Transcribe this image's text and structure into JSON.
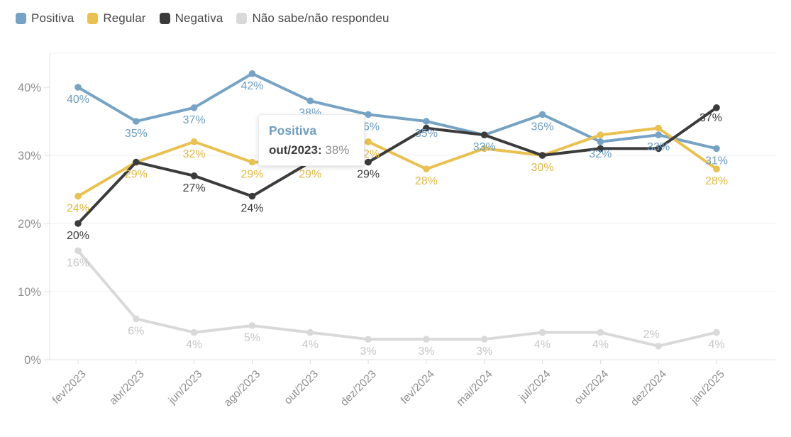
{
  "chart_data": {
    "type": "line",
    "categories": [
      "fev/2023",
      "abr/2023",
      "jun/2023",
      "ago/2023",
      "out/2023",
      "dez/2023",
      "fev/2024",
      "mai/2024",
      "jul/2024",
      "out/2024",
      "dez/2024",
      "jan/2025"
    ],
    "series": [
      {
        "name": "Positiva",
        "color": "#76a3c4",
        "label_color": "#6d9dc2",
        "values": [
          40,
          35,
          37,
          42,
          38,
          36,
          35,
          33,
          36,
          32,
          33,
          31
        ],
        "hidden_labels": [],
        "label_offsets": {}
      },
      {
        "name": "Regular",
        "color": "#e9c152",
        "label_color": "#e3b844",
        "values": [
          24,
          29,
          32,
          29,
          29,
          32,
          28,
          31,
          30,
          33,
          34,
          28
        ],
        "hidden_labels": [
          7,
          9,
          10
        ],
        "label_offsets": {}
      },
      {
        "name": "Negativa",
        "color": "#3b3b3b",
        "label_color": "#3d3d3d",
        "values": [
          20,
          29,
          27,
          24,
          29,
          29,
          34,
          33,
          30,
          31,
          31,
          37
        ],
        "hidden_labels": [
          1,
          4,
          6,
          7,
          8,
          9,
          10
        ],
        "label_offsets": {
          "11": [
            -8,
            -3
          ]
        }
      },
      {
        "name": "Não sabe/não respondeu",
        "color": "#d9d9d9",
        "label_color": "#c6c6c6",
        "values": [
          16,
          6,
          4,
          5,
          4,
          3,
          3,
          3,
          4,
          4,
          2,
          4
        ],
        "hidden_labels": [],
        "label_offsets": {
          "10": [
            -10,
            -34
          ]
        }
      }
    ],
    "title": "",
    "xlabel": "",
    "ylabel": "",
    "ylim": [
      0,
      45
    ],
    "ytick_step": 10,
    "tick_suffix": "%",
    "grid": true,
    "legend_position": "top-left"
  },
  "tooltip": {
    "series_label": "Positiva",
    "point_label": "out/2023:",
    "value": "38%"
  },
  "axis_colors": {
    "tick_text": "#8f8f8f",
    "grid_line": "#f0f0f0",
    "axis_line": "#e2e2e2",
    "tick_mark": "#dcdcdc"
  }
}
